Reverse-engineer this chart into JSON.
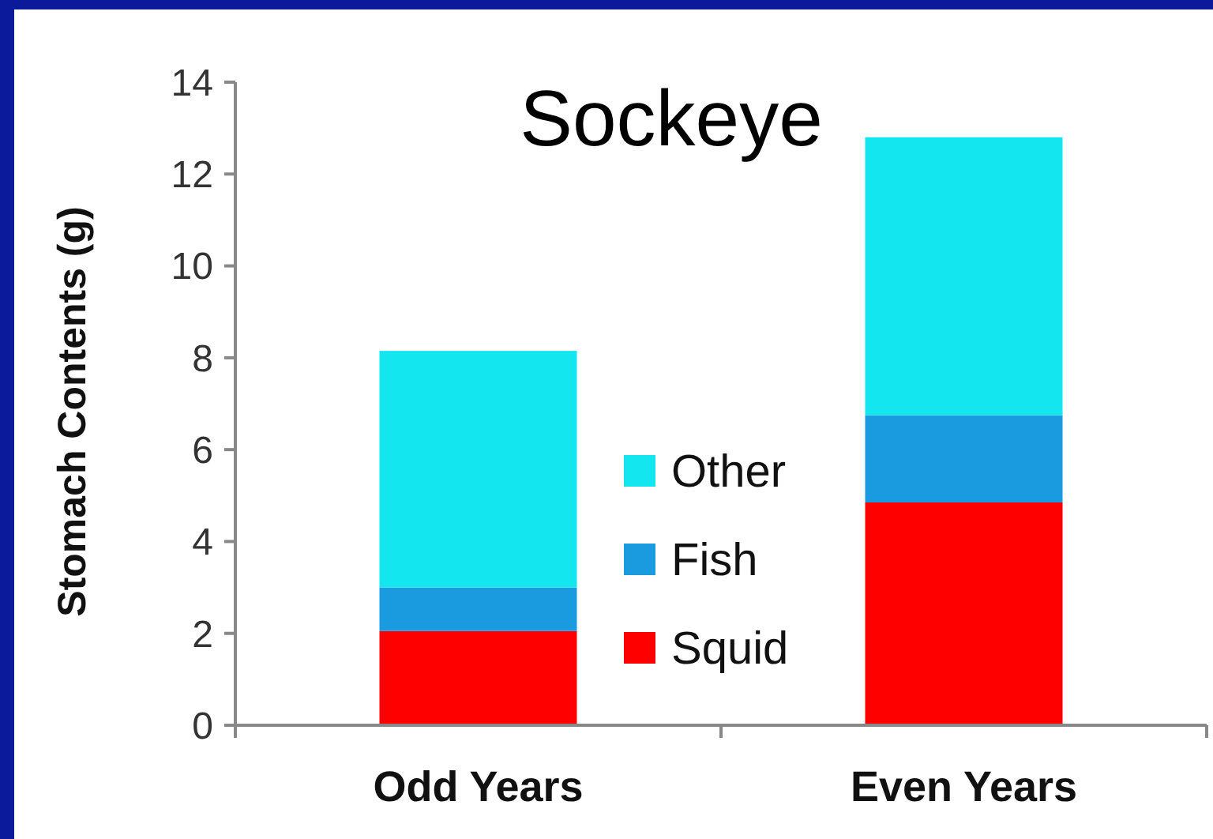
{
  "chart_data": {
    "type": "bar",
    "title": "Sockeye",
    "ylabel": "Stomach Contents (g)",
    "categories": [
      "Odd Years",
      "Even Years"
    ],
    "series": [
      {
        "name": "Squid",
        "color": "#ff0000",
        "values": [
          2.05,
          4.85
        ]
      },
      {
        "name": "Fish",
        "color": "#1a9be0",
        "values": [
          0.95,
          1.9
        ]
      },
      {
        "name": "Other",
        "color": "#14e6f0",
        "values": [
          5.15,
          6.05
        ]
      }
    ],
    "stacked": true,
    "ylim": [
      0,
      14
    ],
    "yticks": [
      0,
      2,
      4,
      6,
      8,
      10,
      12,
      14
    ],
    "grid": false,
    "legend": "center"
  }
}
